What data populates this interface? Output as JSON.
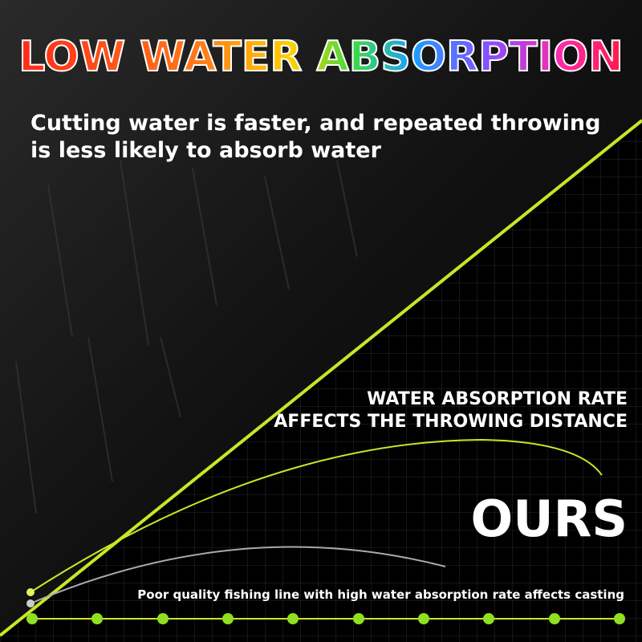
{
  "header": {
    "title": "LOW WATER ABSORPTION",
    "subtitle_lines": [
      "Cutting water is faster, and repeated throwing",
      "is less likely to absorb water"
    ]
  },
  "comparison": {
    "heading_lines": [
      "WATER ABSORPTION RATE",
      "AFFECTS THE THROWING DISTANCE"
    ],
    "ours_label": "OURS",
    "other_caption": "Poor quality fishing line with high water absorption rate affects casting"
  }
}
